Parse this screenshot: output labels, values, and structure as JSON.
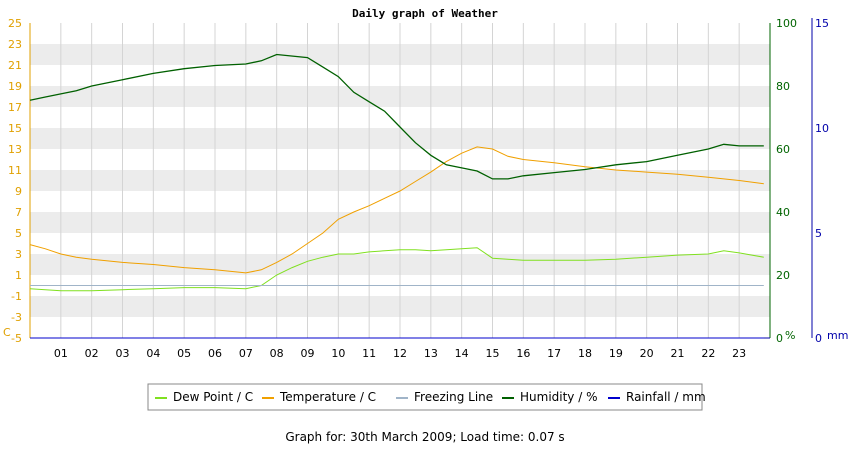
{
  "chart_data": {
    "type": "line",
    "title": "Daily graph of Weather",
    "x_unit": "hour of day",
    "xlim": [
      0,
      24
    ],
    "x_ticks": [
      "01",
      "02",
      "03",
      "04",
      "05",
      "06",
      "07",
      "08",
      "09",
      "10",
      "11",
      "12",
      "13",
      "14",
      "15",
      "16",
      "17",
      "18",
      "19",
      "20",
      "21",
      "22",
      "23"
    ],
    "y_left": {
      "unit": "C",
      "ylim": [
        -5,
        25
      ],
      "ticks": [
        "25",
        "23",
        "21",
        "19",
        "17",
        "15",
        "13",
        "11",
        "9",
        "7",
        "5",
        "3",
        "1",
        "-1",
        "-3",
        "-5"
      ]
    },
    "y_humidity": {
      "unit": "%",
      "ylim": [
        0,
        100
      ],
      "ticks": [
        "100",
        "80",
        "60",
        "40",
        "20",
        "0"
      ]
    },
    "y_rainfall": {
      "unit": "mm",
      "ylim": [
        0,
        15
      ],
      "ticks": [
        "15",
        "10",
        "5",
        "0"
      ]
    },
    "grid": true,
    "legend_position": "bottom",
    "series": [
      {
        "name": "Dew Point / C",
        "axis": "left",
        "color": "#80e020",
        "points": [
          [
            0,
            -0.3
          ],
          [
            1,
            -0.5
          ],
          [
            2,
            -0.5
          ],
          [
            3,
            -0.4
          ],
          [
            4,
            -0.3
          ],
          [
            5,
            -0.2
          ],
          [
            6,
            -0.2
          ],
          [
            7,
            -0.3
          ],
          [
            7.5,
            0.0
          ],
          [
            8,
            1.0
          ],
          [
            8.5,
            1.7
          ],
          [
            9,
            2.3
          ],
          [
            9.5,
            2.7
          ],
          [
            10,
            3.0
          ],
          [
            10.5,
            3.0
          ],
          [
            11,
            3.2
          ],
          [
            11.5,
            3.3
          ],
          [
            12,
            3.4
          ],
          [
            12.5,
            3.4
          ],
          [
            13,
            3.3
          ],
          [
            13.5,
            3.4
          ],
          [
            14,
            3.5
          ],
          [
            14.5,
            3.6
          ],
          [
            15,
            2.6
          ],
          [
            15.5,
            2.5
          ],
          [
            16,
            2.4
          ],
          [
            17,
            2.4
          ],
          [
            18,
            2.4
          ],
          [
            19,
            2.5
          ],
          [
            20,
            2.7
          ],
          [
            21,
            2.9
          ],
          [
            22,
            3.0
          ],
          [
            22.5,
            3.3
          ],
          [
            23,
            3.1
          ],
          [
            23.8,
            2.7
          ]
        ]
      },
      {
        "name": "Temperature / C",
        "axis": "left",
        "color": "#f0a000",
        "points": [
          [
            0,
            3.9
          ],
          [
            0.5,
            3.5
          ],
          [
            1,
            3.0
          ],
          [
            1.5,
            2.7
          ],
          [
            2,
            2.5
          ],
          [
            3,
            2.2
          ],
          [
            4,
            2.0
          ],
          [
            5,
            1.7
          ],
          [
            6,
            1.5
          ],
          [
            7,
            1.2
          ],
          [
            7.5,
            1.5
          ],
          [
            8,
            2.2
          ],
          [
            8.5,
            3.0
          ],
          [
            9,
            4.0
          ],
          [
            9.5,
            5.0
          ],
          [
            10,
            6.3
          ],
          [
            10.5,
            7.0
          ],
          [
            11,
            7.6
          ],
          [
            11.5,
            8.3
          ],
          [
            12,
            9.0
          ],
          [
            12.5,
            9.9
          ],
          [
            13,
            10.8
          ],
          [
            13.5,
            11.8
          ],
          [
            14,
            12.6
          ],
          [
            14.5,
            13.2
          ],
          [
            15,
            13.0
          ],
          [
            15.5,
            12.3
          ],
          [
            16,
            12.0
          ],
          [
            17,
            11.7
          ],
          [
            18,
            11.3
          ],
          [
            19,
            11.0
          ],
          [
            20,
            10.8
          ],
          [
            21,
            10.6
          ],
          [
            22,
            10.3
          ],
          [
            23,
            10.0
          ],
          [
            23.8,
            9.7
          ]
        ]
      },
      {
        "name": "Freezing Line",
        "axis": "left",
        "color": "#a0b4c8",
        "points": [
          [
            0,
            0
          ],
          [
            23.8,
            0
          ]
        ]
      },
      {
        "name": "Humidity / %",
        "axis": "humidity",
        "color": "#006000",
        "points": [
          [
            0,
            75.5
          ],
          [
            0.5,
            76.5
          ],
          [
            1,
            77.5
          ],
          [
            1.5,
            78.5
          ],
          [
            2,
            80
          ],
          [
            3,
            82
          ],
          [
            4,
            84
          ],
          [
            5,
            85.5
          ],
          [
            6,
            86.5
          ],
          [
            7,
            87
          ],
          [
            7.5,
            88
          ],
          [
            8,
            90
          ],
          [
            9,
            89
          ],
          [
            9.5,
            86
          ],
          [
            10,
            83
          ],
          [
            10.5,
            78
          ],
          [
            11,
            75
          ],
          [
            11.5,
            72
          ],
          [
            12,
            67
          ],
          [
            12.5,
            62
          ],
          [
            13,
            58
          ],
          [
            13.5,
            55
          ],
          [
            14,
            54
          ],
          [
            14.5,
            53
          ],
          [
            15,
            50.5
          ],
          [
            15.5,
            50.5
          ],
          [
            16,
            51.5
          ],
          [
            17,
            52.5
          ],
          [
            18,
            53.5
          ],
          [
            19,
            55
          ],
          [
            20,
            56
          ],
          [
            21,
            58
          ],
          [
            22,
            60
          ],
          [
            22.5,
            61.5
          ],
          [
            23,
            61
          ],
          [
            23.8,
            61
          ]
        ]
      },
      {
        "name": "Rainfall / mm",
        "axis": "rainfall",
        "color": "#0000cc",
        "points": [
          [
            0,
            0
          ],
          [
            23.8,
            0
          ]
        ]
      }
    ]
  },
  "footer": "Graph for: 30th March 2009; Load time: 0.07 s"
}
